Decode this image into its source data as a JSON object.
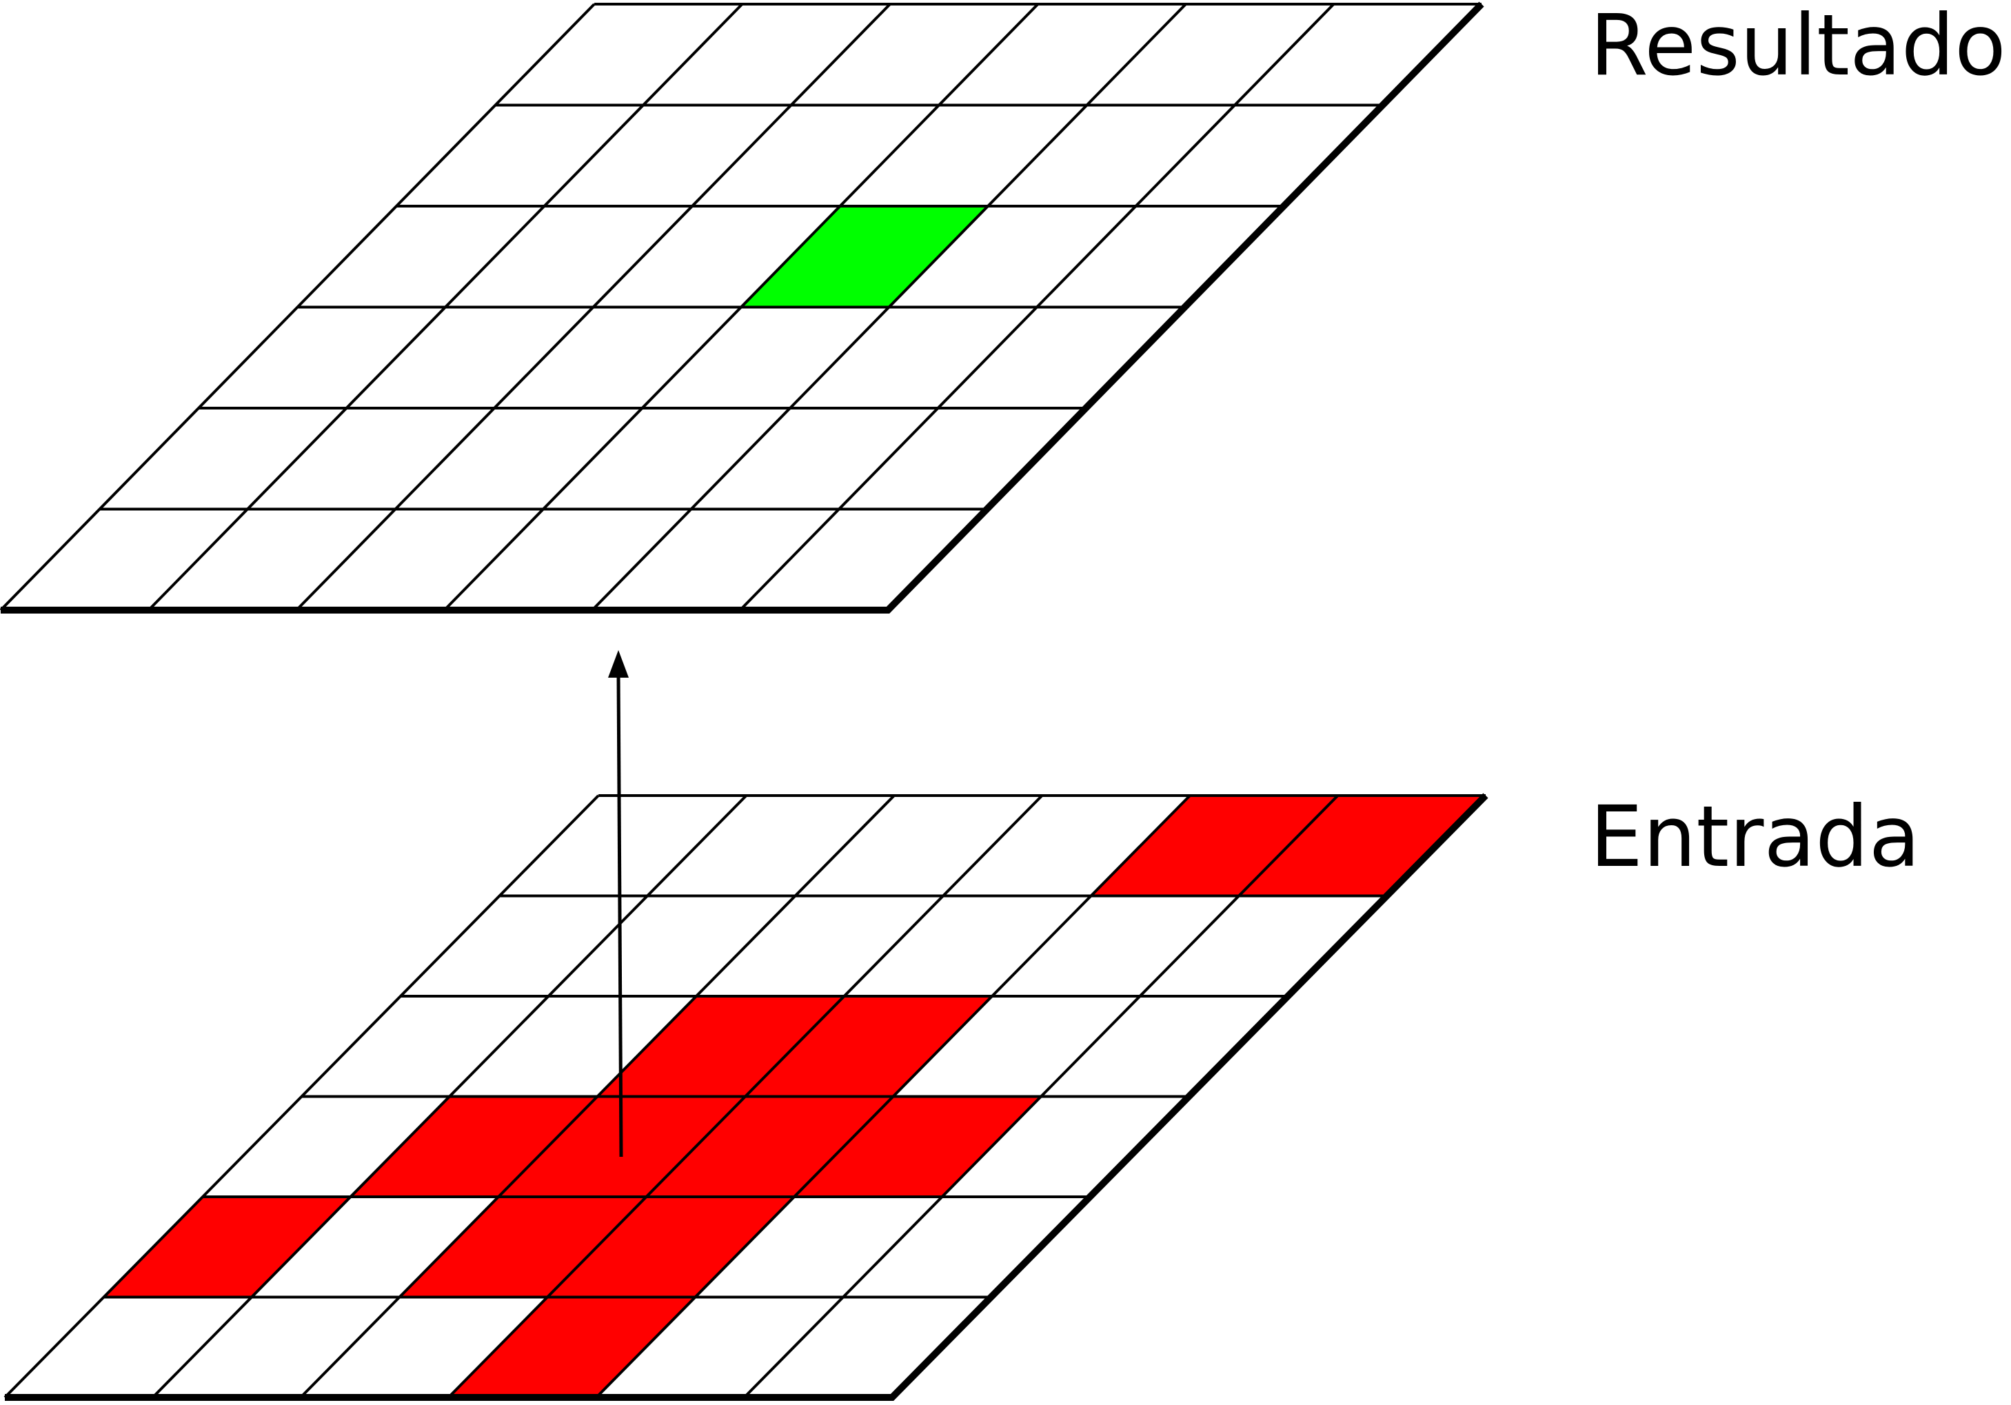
{
  "labels": {
    "top": "Resultado",
    "bottom": "Entrada"
  },
  "grid": {
    "rows": 6,
    "cols": 6
  },
  "layers": {
    "result": {
      "highlight_color": "#00ff00",
      "highlighted_cells": [
        [
          2,
          3
        ]
      ]
    },
    "input": {
      "highlight_color": "#ff0000",
      "highlighted_cells": [
        [
          0,
          4
        ],
        [
          0,
          5
        ],
        [
          2,
          2
        ],
        [
          2,
          3
        ],
        [
          3,
          1
        ],
        [
          3,
          2
        ],
        [
          3,
          3
        ],
        [
          3,
          4
        ],
        [
          4,
          0
        ],
        [
          4,
          2
        ],
        [
          4,
          3
        ],
        [
          5,
          3
        ]
      ]
    }
  },
  "colors": {
    "line": "#000000",
    "background": "#ffffff"
  }
}
